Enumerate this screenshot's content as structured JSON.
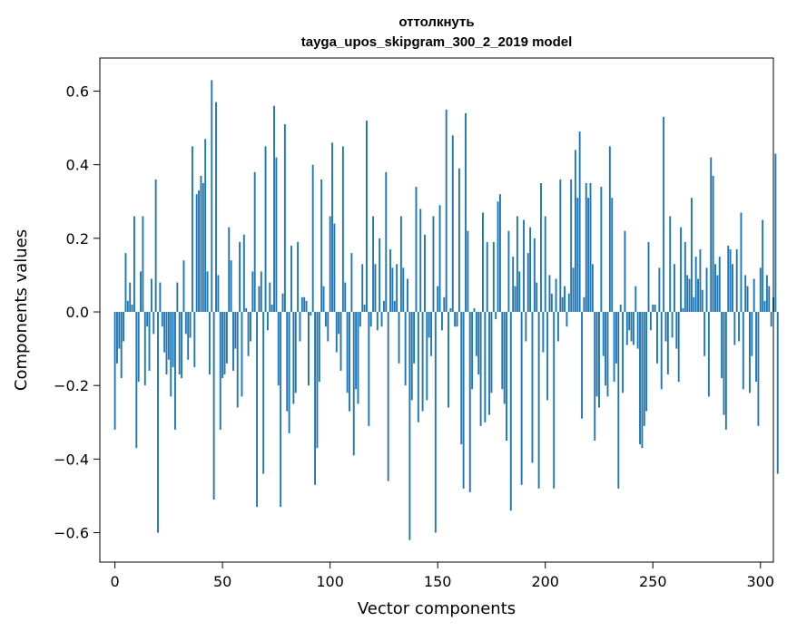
{
  "chart_data": {
    "type": "bar",
    "title": "оттолкнуть",
    "subtitle": "tayga_upos_skipgram_300_2_2019 model",
    "xlabel": "Vector components",
    "ylabel": "Components values",
    "xlim": [
      -7,
      306
    ],
    "ylim": [
      -0.68,
      0.69
    ],
    "xticks": [
      0,
      50,
      100,
      150,
      200,
      250,
      300
    ],
    "yticks": [
      -0.6,
      -0.4,
      -0.2,
      0.0,
      0.2,
      0.4,
      0.6
    ],
    "ytick_labels": [
      "−0.6",
      "−0.4",
      "−0.2",
      "0.0",
      "0.2",
      "0.4",
      "0.6"
    ],
    "bar_color": "#1f77b4",
    "grid": false,
    "legend": "none",
    "series": [
      {
        "values": [
          -0.32,
          -0.14,
          -0.1,
          -0.18,
          -0.08,
          0.16,
          0.03,
          0.08,
          0.02,
          0.26,
          -0.37,
          -0.19,
          0.11,
          0.26,
          -0.2,
          -0.04,
          -0.16,
          0.09,
          -0.06,
          0.36,
          -0.6,
          0.08,
          -0.04,
          -0.11,
          -0.17,
          -0.13,
          -0.23,
          -0.15,
          -0.32,
          0.08,
          -0.17,
          -0.18,
          0.14,
          -0.06,
          -0.13,
          -0.07,
          0.45,
          -0.15,
          0.32,
          0.33,
          0.37,
          0.35,
          0.47,
          0.11,
          -0.17,
          0.63,
          -0.51,
          0.57,
          0.1,
          -0.32,
          -0.18,
          -0.17,
          -0.14,
          0.23,
          0.14,
          -0.16,
          -0.1,
          -0.26,
          0.19,
          -0.23,
          0.21,
          0.01,
          -0.12,
          -0.08,
          0.11,
          0.38,
          -0.53,
          0.07,
          0.11,
          -0.44,
          0.45,
          -0.05,
          0.08,
          0.02,
          0.56,
          0.42,
          -0.2,
          -0.53,
          0.05,
          0.51,
          -0.27,
          -0.33,
          0.18,
          -0.25,
          -0.22,
          0.19,
          -0.08,
          0.04,
          0.04,
          0.03,
          -0.2,
          -0.01,
          0.4,
          -0.47,
          -0.37,
          -0.19,
          0.36,
          0.07,
          -0.04,
          -0.08,
          0.26,
          0.46,
          0.24,
          -0.11,
          -0.06,
          -0.16,
          0.45,
          0.08,
          -0.22,
          -0.27,
          0.16,
          -0.39,
          -0.21,
          -0.25,
          -0.04,
          0.13,
          0.02,
          0.52,
          -0.31,
          -0.04,
          0.26,
          0.13,
          -0.05,
          0.2,
          -0.04,
          0.03,
          0.38,
          -0.46,
          0.17,
          0.12,
          0.03,
          0.13,
          -0.14,
          0.26,
          0.12,
          -0.2,
          0.09,
          -0.62,
          -0.24,
          -0.14,
          0.34,
          -0.3,
          0.28,
          -0.27,
          0.21,
          -0.24,
          -0.07,
          -0.12,
          0.26,
          -0.6,
          0.07,
          0.29,
          -0.05,
          0.04,
          0.55,
          -0.26,
          0.01,
          0.48,
          -0.04,
          -0.04,
          0.39,
          -0.36,
          -0.48,
          0.54,
          0.22,
          -0.49,
          -0.21,
          0.01,
          -0.12,
          -0.17,
          -0.31,
          0.27,
          -0.3,
          0.19,
          -0.28,
          -0.22,
          0.19,
          -0.02,
          0.3,
          0.32,
          -0.21,
          -0.25,
          -0.35,
          0.22,
          -0.54,
          0.15,
          0.07,
          0.26,
          0.11,
          -0.47,
          0.25,
          -0.08,
          0.16,
          0.23,
          -0.41,
          0.2,
          0.08,
          -0.48,
          0.35,
          -0.11,
          0.26,
          -0.24,
          0.1,
          0.05,
          -0.48,
          0.09,
          -0.08,
          0.36,
          0.04,
          0.07,
          -0.04,
          0.05,
          0.36,
          0.12,
          0.44,
          0.31,
          0.49,
          -0.29,
          0.04,
          0.35,
          0.31,
          0.35,
          0.13,
          -0.35,
          -0.23,
          -0.26,
          0.34,
          -0.12,
          -0.2,
          -0.23,
          0.45,
          0.31,
          -0.19,
          -0.14,
          -0.48,
          0.02,
          -0.22,
          0.22,
          -0.09,
          -0.05,
          -0.08,
          -0.09,
          0.07,
          -0.1,
          -0.36,
          -0.37,
          -0.31,
          -0.27,
          0.19,
          -0.05,
          0.02,
          0.02,
          -0.14,
          0.12,
          -0.21,
          0.53,
          -0.08,
          -0.17,
          0.26,
          -0.07,
          0.13,
          -0.1,
          -0.19,
          0.23,
          0.01,
          0.19,
          0.1,
          0.09,
          0.31,
          0.04,
          0.15,
          0.09,
          0.17,
          0.06,
          -0.12,
          0.12,
          -0.23,
          0.42,
          0.37,
          0.13,
          0.1,
          0.15,
          -0.18,
          -0.28,
          -0.32,
          0.18,
          0.17,
          0.13,
          -0.09,
          0.17,
          -0.08,
          0.27,
          -0.21,
          0.1,
          0.07,
          -0.22,
          -0.12,
          0.09,
          -0.19,
          -0.31,
          0.12,
          0.25,
          0.03,
          0.1,
          0.07,
          -0.04,
          0.04,
          0.43,
          -0.44,
          0.0
        ]
      }
    ]
  }
}
